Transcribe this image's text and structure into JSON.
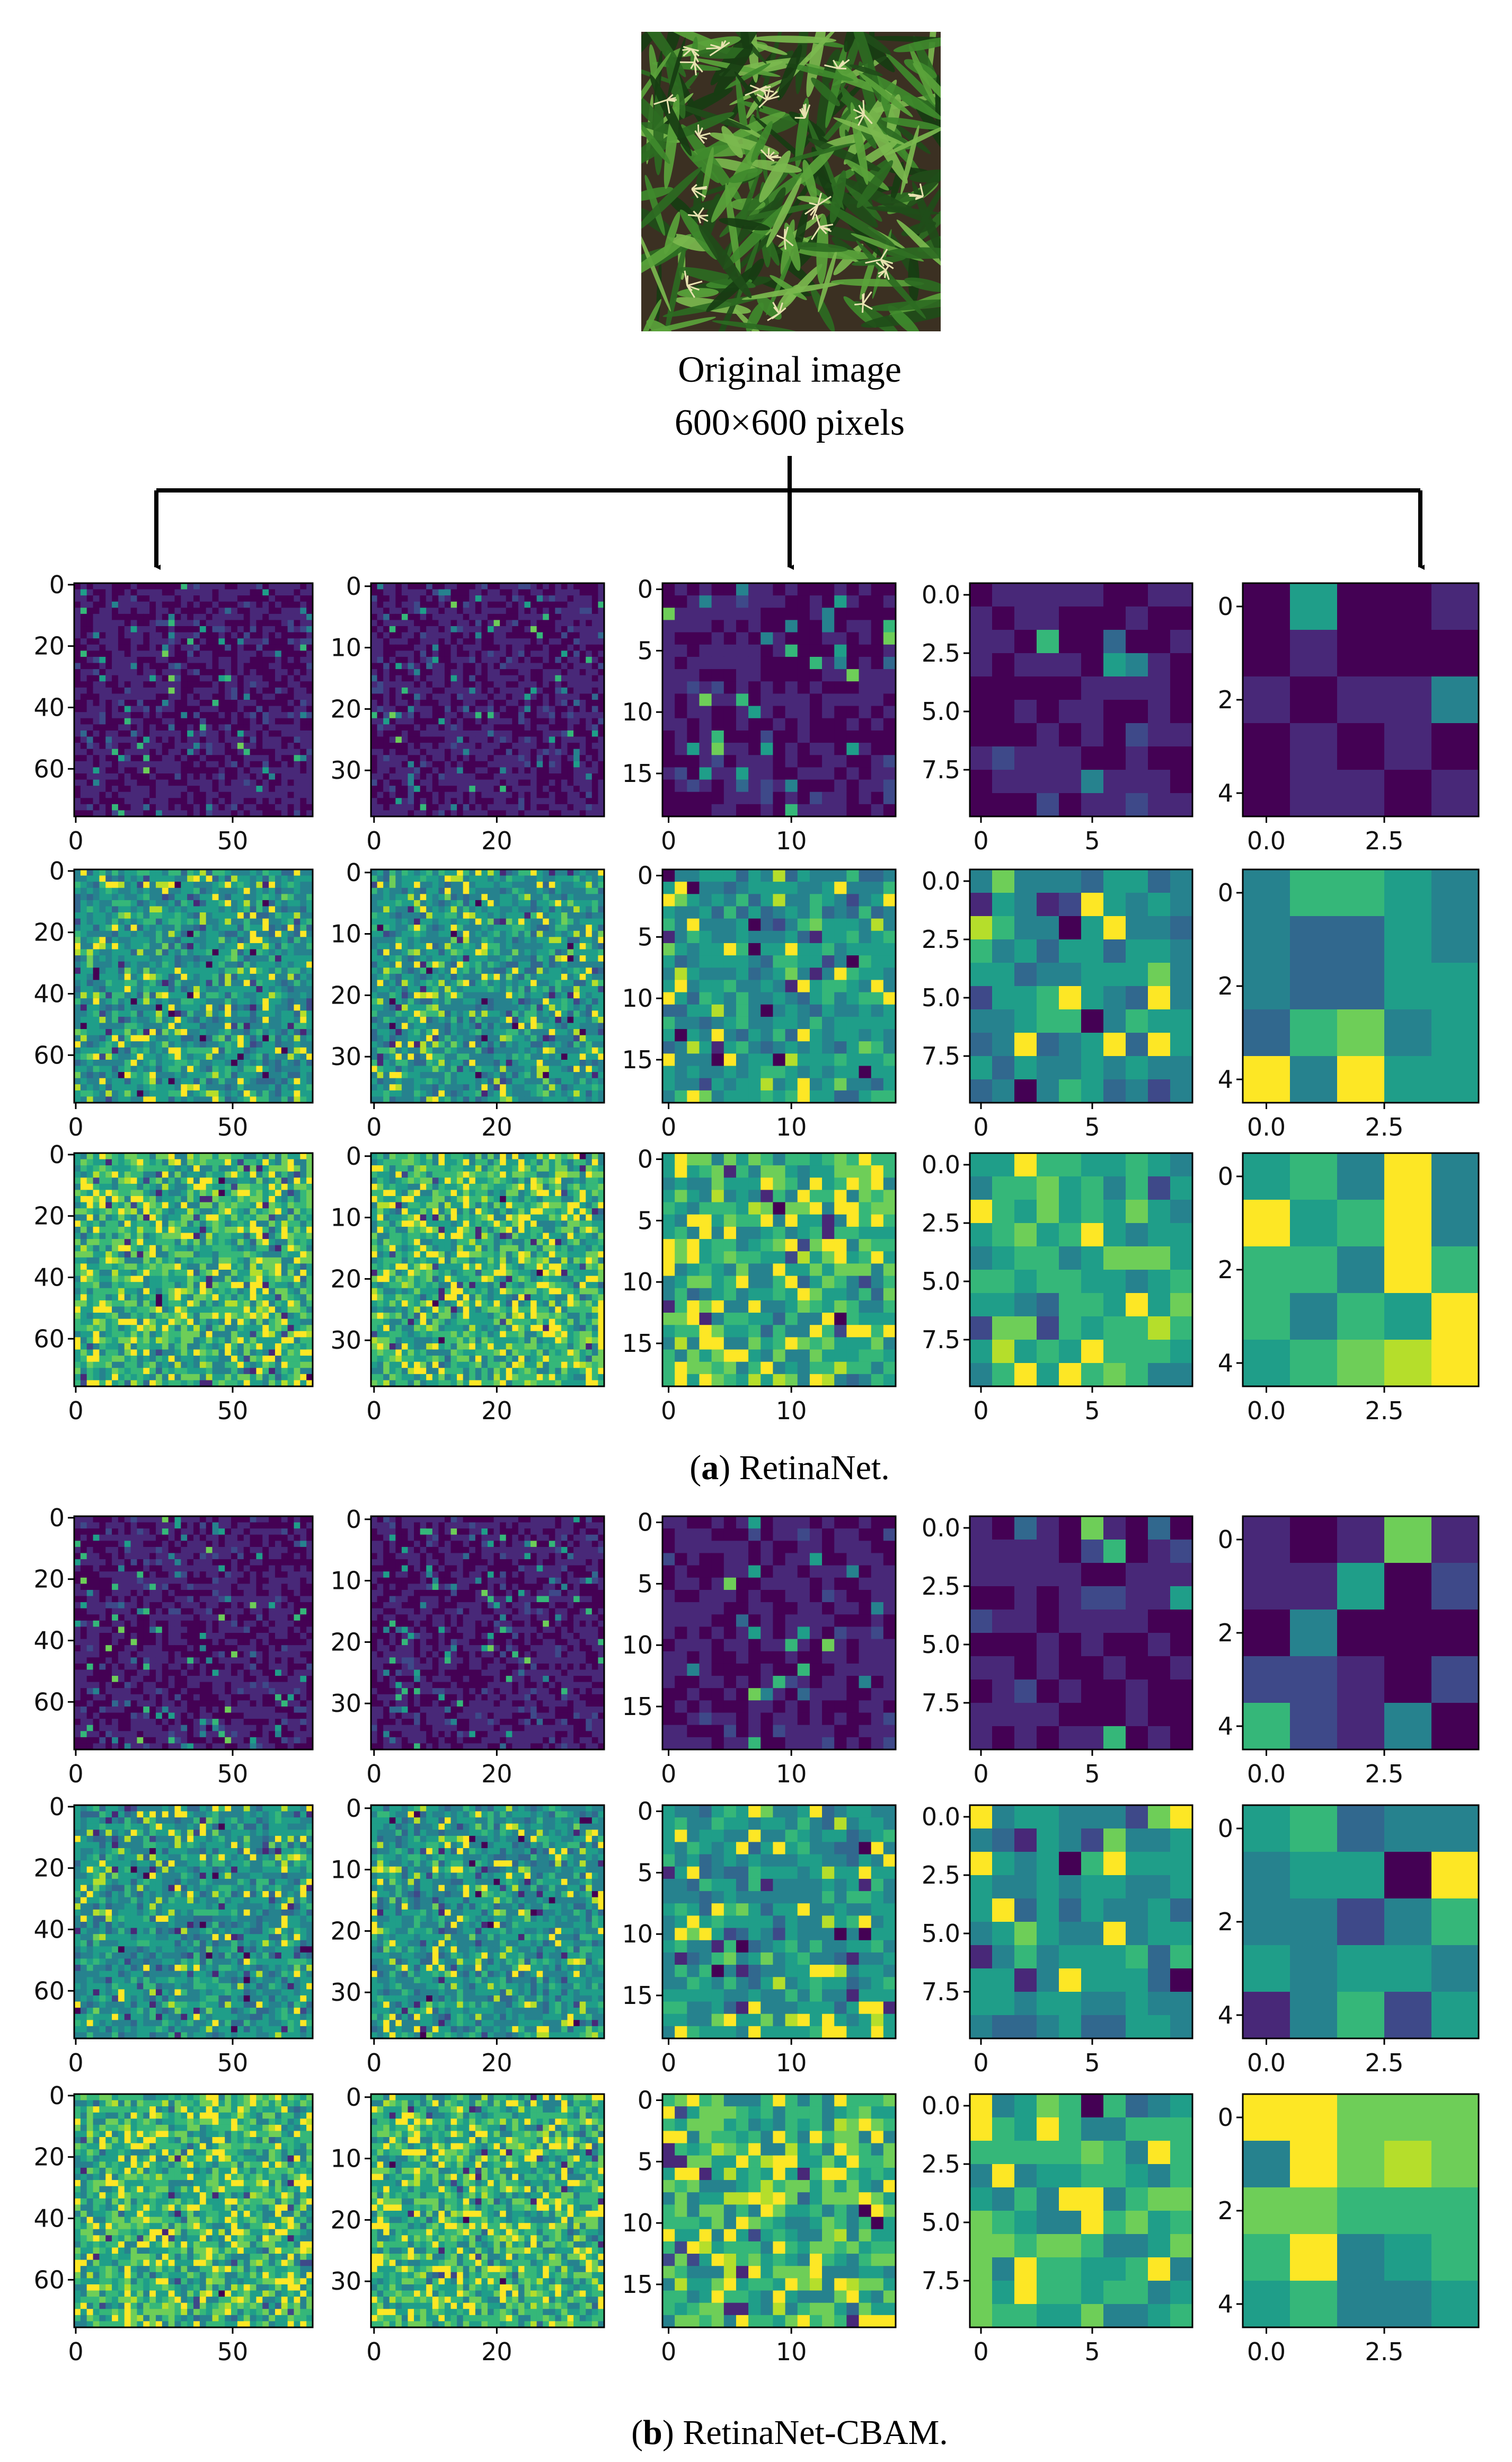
{
  "original": {
    "caption_line1": "Original image",
    "caption_line2": "600×600 pixels",
    "leaf_colors": [
      "#1f4d19",
      "#2d6b22",
      "#3f8a2d",
      "#5aa33b",
      "#173d12",
      "#7bb84e"
    ],
    "tassel_color": "#e8e2b0",
    "soil_color": "#3b3022"
  },
  "colormap": [
    "#440154",
    "#482878",
    "#3e4989",
    "#31688e",
    "#26828e",
    "#1f9e89",
    "#35b779",
    "#6ece58",
    "#b5de2b",
    "#fde725"
  ],
  "columns": [
    {
      "size": 76,
      "res": 2,
      "yticks": [
        {
          "v": 0,
          "label": "0"
        },
        {
          "v": 20,
          "label": "20"
        },
        {
          "v": 40,
          "label": "40"
        },
        {
          "v": 60,
          "label": "60"
        }
      ],
      "xticks": [
        {
          "v": 0,
          "label": "0"
        },
        {
          "v": 50,
          "label": "50"
        }
      ]
    },
    {
      "size": 38,
      "res": 1,
      "yticks": [
        {
          "v": 0,
          "label": "0"
        },
        {
          "v": 10,
          "label": "10"
        },
        {
          "v": 20,
          "label": "20"
        },
        {
          "v": 30,
          "label": "30"
        }
      ],
      "xticks": [
        {
          "v": 0,
          "label": "0"
        },
        {
          "v": 20,
          "label": "20"
        }
      ]
    },
    {
      "size": 19,
      "res": 1,
      "yticks": [
        {
          "v": 0,
          "label": "0"
        },
        {
          "v": 5,
          "label": "5"
        },
        {
          "v": 10,
          "label": "10"
        },
        {
          "v": 15,
          "label": "15"
        }
      ],
      "xticks": [
        {
          "v": 0,
          "label": "0"
        },
        {
          "v": 10,
          "label": "10"
        }
      ]
    },
    {
      "size": 10,
      "res": 1,
      "yticks": [
        {
          "v": 0,
          "label": "0.0"
        },
        {
          "v": 2.5,
          "label": "2.5"
        },
        {
          "v": 5,
          "label": "5.0"
        },
        {
          "v": 7.5,
          "label": "7.5"
        }
      ],
      "xticks": [
        {
          "v": 0,
          "label": "0"
        },
        {
          "v": 5,
          "label": "5"
        }
      ]
    },
    {
      "size": 5,
      "res": 1,
      "yticks": [
        {
          "v": 0,
          "label": "0"
        },
        {
          "v": 2,
          "label": "2"
        },
        {
          "v": 4,
          "label": "4"
        }
      ],
      "xticks": [
        {
          "v": 0,
          "label": "0.0"
        },
        {
          "v": 2.5,
          "label": "2.5"
        }
      ]
    }
  ],
  "panels": [
    {
      "id": "a",
      "label": "a",
      "name": "RetinaNet.",
      "rows": [
        {
          "base": 0.12
        },
        {
          "base": 0.5
        },
        {
          "base": 0.6
        }
      ]
    },
    {
      "id": "b",
      "label": "b",
      "name": "RetinaNet-CBAM.",
      "rows": [
        {
          "base": 0.12
        },
        {
          "base": 0.5
        },
        {
          "base": 0.6
        }
      ]
    }
  ]
}
